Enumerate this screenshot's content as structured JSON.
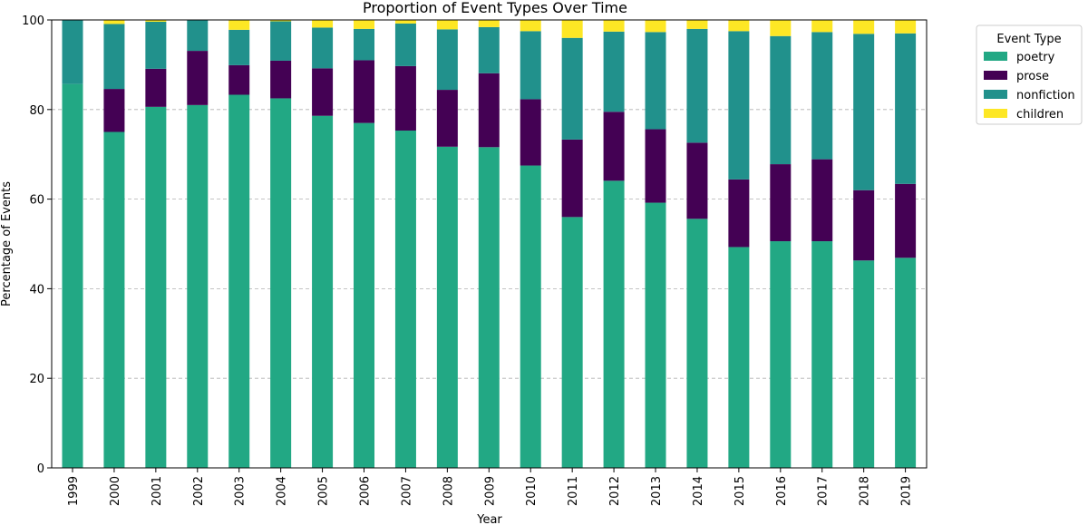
{
  "chart_data": {
    "type": "bar",
    "stacked": true,
    "title": "Proportion of Event Types Over Time",
    "xlabel": "Year",
    "ylabel": "Percentage of Events",
    "ylim": [
      0,
      100
    ],
    "yticks": [
      0,
      20,
      40,
      60,
      80,
      100
    ],
    "grid": "y-dashed",
    "categories": [
      "1999",
      "2000",
      "2001",
      "2002",
      "2003",
      "2004",
      "2005",
      "2006",
      "2007",
      "2008",
      "2009",
      "2010",
      "2011",
      "2012",
      "2013",
      "2014",
      "2015",
      "2016",
      "2017",
      "2018",
      "2019"
    ],
    "series": [
      {
        "name": "poetry",
        "color": "#22a884",
        "values": [
          85.7,
          75.0,
          80.6,
          81.0,
          83.3,
          82.5,
          78.6,
          77.0,
          75.3,
          71.7,
          71.6,
          67.5,
          56.0,
          64.1,
          59.2,
          55.6,
          49.3,
          50.6,
          50.6,
          46.3,
          46.9
        ]
      },
      {
        "name": "prose",
        "color": "#440154",
        "values": [
          0.0,
          9.6,
          8.5,
          12.1,
          6.6,
          8.4,
          10.6,
          14.0,
          14.4,
          12.7,
          16.5,
          14.8,
          17.3,
          15.4,
          16.4,
          17.0,
          15.1,
          17.2,
          18.3,
          15.7,
          16.5
        ]
      },
      {
        "name": "nonfiction",
        "color": "#21918c",
        "values": [
          14.3,
          14.5,
          10.5,
          6.9,
          7.9,
          8.8,
          9.1,
          7.0,
          9.5,
          13.5,
          10.3,
          15.2,
          22.7,
          17.9,
          21.7,
          25.4,
          33.1,
          28.6,
          28.4,
          34.9,
          33.6
        ]
      },
      {
        "name": "children",
        "color": "#fde725",
        "values": [
          0.0,
          0.9,
          0.4,
          0.0,
          2.2,
          0.3,
          1.7,
          2.0,
          0.8,
          2.1,
          1.6,
          2.5,
          4.0,
          2.6,
          2.7,
          2.0,
          2.5,
          3.6,
          2.7,
          3.1,
          3.0
        ]
      }
    ],
    "legend": {
      "title": "Event Type",
      "placement": "outside-top-right"
    }
  }
}
